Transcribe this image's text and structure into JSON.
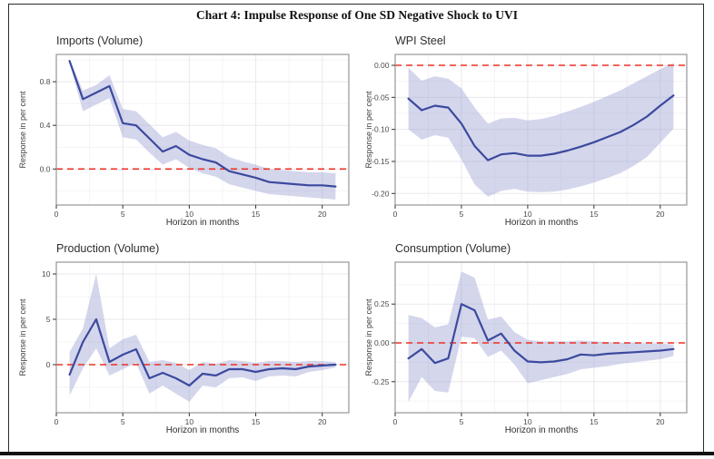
{
  "page": {
    "title": "Chart 4: Impulse Response of One SD Negative Shock to UVI"
  },
  "style": {
    "line_color": "#3B4A9E",
    "band_color": "#8E93CD",
    "band_opacity": 0.38,
    "zero_line_color": "#ED3124",
    "grid_major_color": "#E9E9EE",
    "grid_minor_color": "#F4F4F8",
    "panel_border_color": "#979797",
    "tick_color": "#333333",
    "tick_label_color": "#4A4A4A"
  },
  "chart_data": [
    {
      "type": "line",
      "title": "Imports (Volume)",
      "xlabel": "Horizon in months",
      "ylabel": "Response in per cent",
      "x": [
        1,
        2,
        3,
        4,
        5,
        6,
        7,
        8,
        9,
        10,
        11,
        12,
        13,
        14,
        15,
        16,
        17,
        18,
        19,
        20,
        21
      ],
      "series": [
        {
          "name": "impulse response",
          "values": [
            0.99,
            0.64,
            0.7,
            0.76,
            0.42,
            0.4,
            0.28,
            0.16,
            0.21,
            0.13,
            0.09,
            0.06,
            -0.02,
            -0.05,
            -0.08,
            -0.12,
            -0.13,
            -0.14,
            -0.15,
            -0.15,
            -0.16
          ]
        }
      ],
      "band": {
        "name": "confidence band",
        "upper": [
          1.0,
          0.72,
          0.77,
          0.86,
          0.55,
          0.53,
          0.41,
          0.29,
          0.34,
          0.26,
          0.22,
          0.19,
          0.11,
          0.07,
          0.04,
          0.0,
          -0.01,
          -0.02,
          -0.03,
          -0.03,
          -0.04
        ],
        "lower": [
          0.97,
          0.53,
          0.59,
          0.65,
          0.29,
          0.27,
          0.15,
          0.04,
          0.09,
          0.01,
          -0.04,
          -0.07,
          -0.14,
          -0.17,
          -0.2,
          -0.23,
          -0.24,
          -0.25,
          -0.26,
          -0.27,
          -0.28
        ]
      },
      "zero_line": 0,
      "xlim": [
        0,
        22
      ],
      "ylim": [
        -0.33,
        1.05
      ],
      "grid": true,
      "legend": "none",
      "xticks": {
        "values": [
          0,
          5,
          10,
          15,
          20
        ],
        "labels": [
          "0",
          "5",
          "10",
          "15",
          "20"
        ],
        "minor": [
          2.5,
          7.5,
          12.5,
          17.5
        ]
      },
      "yticks": {
        "values": [
          0.0,
          0.4,
          0.8
        ],
        "labels": [
          "0.0",
          "0.4",
          "0.8"
        ],
        "minor": [
          -0.2,
          0.2,
          0.6,
          1.0
        ]
      }
    },
    {
      "type": "line",
      "title": "WPI Steel",
      "xlabel": "Horizon in months",
      "ylabel": "Response in per cent",
      "x": [
        1,
        2,
        3,
        4,
        5,
        6,
        7,
        8,
        9,
        10,
        11,
        12,
        13,
        14,
        15,
        16,
        17,
        18,
        19,
        20,
        21
      ],
      "series": [
        {
          "name": "impulse response",
          "values": [
            -0.052,
            -0.07,
            -0.063,
            -0.066,
            -0.091,
            -0.126,
            -0.148,
            -0.139,
            -0.137,
            -0.141,
            -0.141,
            -0.138,
            -0.133,
            -0.127,
            -0.12,
            -0.112,
            -0.104,
            -0.093,
            -0.08,
            -0.063,
            -0.047
          ]
        }
      ],
      "band": {
        "name": "confidence band",
        "upper": [
          -0.004,
          -0.024,
          -0.017,
          -0.021,
          -0.036,
          -0.066,
          -0.091,
          -0.083,
          -0.082,
          -0.086,
          -0.084,
          -0.079,
          -0.072,
          -0.065,
          -0.057,
          -0.048,
          -0.039,
          -0.028,
          -0.017,
          -0.006,
          0.004
        ],
        "lower": [
          -0.1,
          -0.116,
          -0.109,
          -0.113,
          -0.147,
          -0.186,
          -0.205,
          -0.196,
          -0.193,
          -0.197,
          -0.198,
          -0.197,
          -0.194,
          -0.189,
          -0.183,
          -0.176,
          -0.168,
          -0.157,
          -0.143,
          -0.121,
          -0.099
        ]
      },
      "zero_line": 0,
      "xlim": [
        0,
        22
      ],
      "ylim": [
        -0.218,
        0.017
      ],
      "grid": true,
      "legend": "none",
      "xticks": {
        "values": [
          0,
          5,
          10,
          15,
          20
        ],
        "labels": [
          "0",
          "5",
          "10",
          "15",
          "20"
        ],
        "minor": [
          2.5,
          7.5,
          12.5,
          17.5
        ]
      },
      "yticks": {
        "values": [
          0.0,
          -0.05,
          -0.1,
          -0.15,
          -0.2
        ],
        "labels": [
          "0.00",
          "-0.05",
          "-0.10",
          "-0.15",
          "-0.20"
        ],
        "minor": [
          -0.025,
          -0.075,
          -0.125,
          -0.175
        ]
      }
    },
    {
      "type": "line",
      "title": "Production (Volume)",
      "xlabel": "Horizon in months",
      "ylabel": "Response in per cent",
      "x": [
        1,
        2,
        3,
        4,
        5,
        6,
        7,
        8,
        9,
        10,
        11,
        12,
        13,
        14,
        15,
        16,
        17,
        18,
        19,
        20,
        21
      ],
      "series": [
        {
          "name": "impulse response",
          "values": [
            -1.1,
            2.5,
            5.0,
            0.3,
            1.1,
            1.7,
            -1.5,
            -0.9,
            -1.5,
            -2.3,
            -1.0,
            -1.2,
            -0.5,
            -0.5,
            -0.8,
            -0.5,
            -0.4,
            -0.5,
            -0.2,
            -0.1,
            0.0
          ]
        }
      ],
      "band": {
        "name": "confidence band",
        "upper": [
          1.4,
          4.0,
          10.0,
          1.8,
          2.8,
          3.3,
          0.3,
          0.5,
          0.2,
          -0.6,
          0.3,
          0.1,
          0.5,
          0.4,
          0.2,
          0.4,
          0.4,
          0.3,
          0.4,
          0.4,
          0.3
        ],
        "lower": [
          -3.4,
          -0.4,
          1.8,
          -1.2,
          -0.5,
          0.2,
          -3.2,
          -2.3,
          -3.2,
          -4.1,
          -2.3,
          -2.5,
          -1.5,
          -1.4,
          -1.8,
          -1.3,
          -1.2,
          -1.3,
          -0.8,
          -0.6,
          -0.3
        ]
      },
      "zero_line": 0,
      "xlim": [
        0,
        22
      ],
      "ylim": [
        -5.3,
        11.3
      ],
      "grid": true,
      "legend": "none",
      "xticks": {
        "values": [
          0,
          5,
          10,
          15,
          20
        ],
        "labels": [
          "0",
          "5",
          "10",
          "15",
          "20"
        ],
        "minor": [
          2.5,
          7.5,
          12.5,
          17.5
        ]
      },
      "yticks": {
        "values": [
          0,
          5,
          10
        ],
        "labels": [
          "0",
          "5",
          "10"
        ],
        "minor": [
          -2.5,
          2.5,
          7.5
        ]
      }
    },
    {
      "type": "line",
      "title": "Consumption (Volume)",
      "xlabel": "Horizon in months",
      "ylabel": "Response in per cent",
      "x": [
        1,
        2,
        3,
        4,
        5,
        6,
        7,
        8,
        9,
        10,
        11,
        12,
        13,
        14,
        15,
        16,
        17,
        18,
        19,
        20,
        21
      ],
      "series": [
        {
          "name": "impulse response",
          "values": [
            -0.1,
            -0.04,
            -0.13,
            -0.1,
            0.25,
            0.21,
            0.015,
            0.06,
            -0.05,
            -0.12,
            -0.125,
            -0.12,
            -0.105,
            -0.075,
            -0.08,
            -0.07,
            -0.065,
            -0.06,
            -0.055,
            -0.05,
            -0.04
          ]
        }
      ],
      "band": {
        "name": "confidence band",
        "upper": [
          0.18,
          0.16,
          0.1,
          0.12,
          0.46,
          0.42,
          0.15,
          0.17,
          0.07,
          0.02,
          0.01,
          0.01,
          0.01,
          0.015,
          0.01,
          0.005,
          0.0,
          0.0,
          -0.005,
          -0.005,
          -0.01
        ],
        "lower": [
          -0.38,
          -0.22,
          -0.31,
          -0.32,
          0.04,
          0.03,
          -0.09,
          -0.05,
          -0.14,
          -0.26,
          -0.24,
          -0.22,
          -0.2,
          -0.17,
          -0.16,
          -0.15,
          -0.135,
          -0.125,
          -0.115,
          -0.105,
          -0.085
        ]
      },
      "zero_line": 0,
      "xlim": [
        0,
        22
      ],
      "ylim": [
        -0.45,
        0.52
      ],
      "grid": true,
      "legend": "none",
      "xticks": {
        "values": [
          0,
          5,
          10,
          15,
          20
        ],
        "labels": [
          "0",
          "5",
          "10",
          "15",
          "20"
        ],
        "minor": [
          2.5,
          7.5,
          12.5,
          17.5
        ]
      },
      "yticks": {
        "values": [
          0.25,
          0.0,
          -0.25
        ],
        "labels": [
          "0.25",
          "0.00",
          "-0.25"
        ],
        "minor": [
          -0.375,
          -0.125,
          0.125,
          0.375
        ]
      }
    }
  ]
}
